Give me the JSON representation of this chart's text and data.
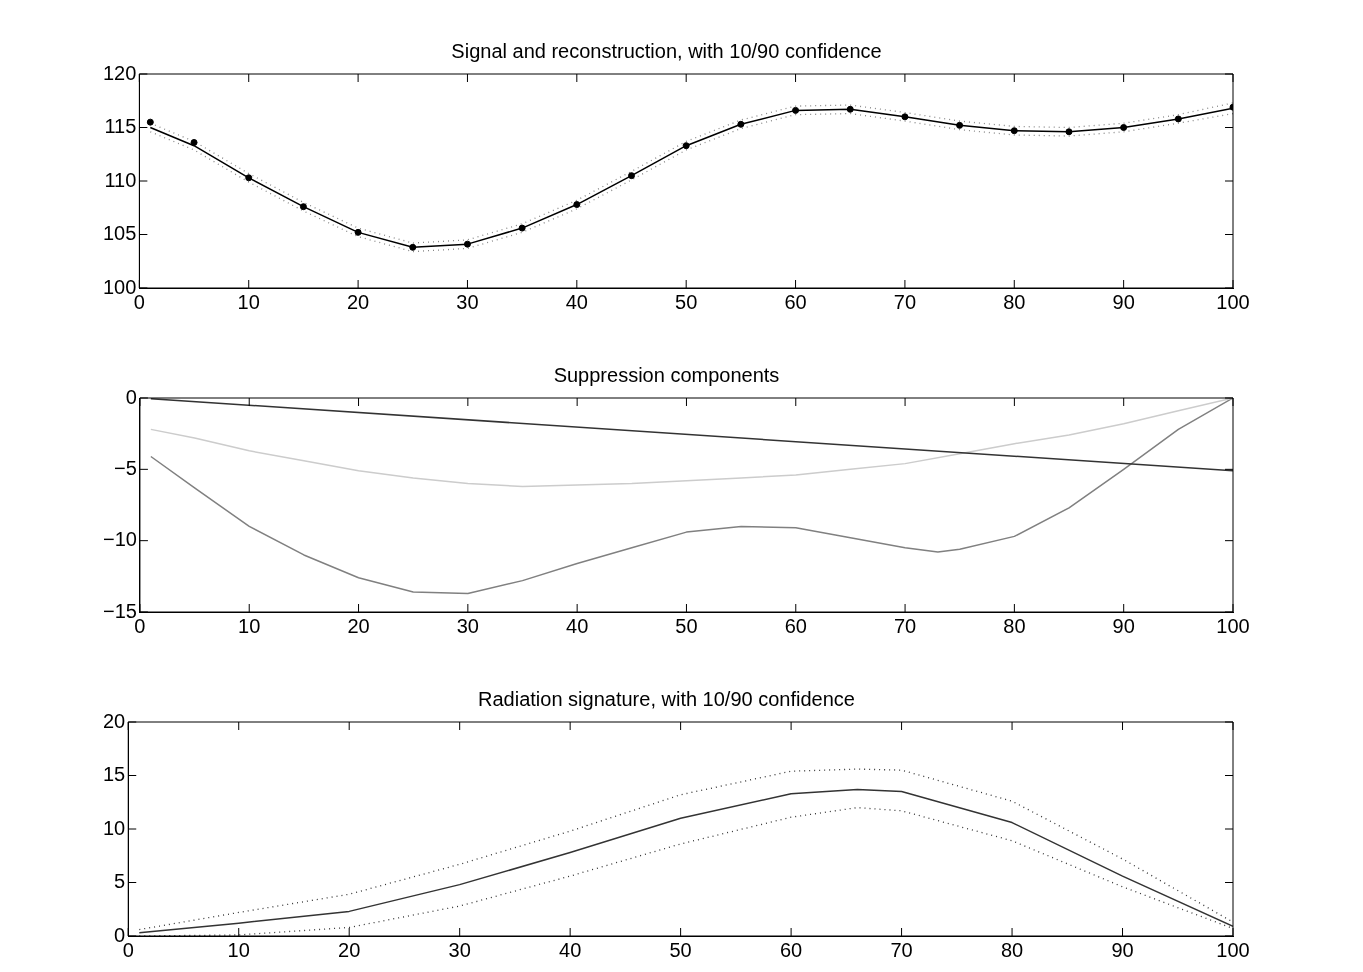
{
  "chart_data": [
    {
      "type": "line",
      "title": "Signal and reconstruction, with 10/90 confidence",
      "x": [
        1,
        5,
        10,
        15,
        20,
        25,
        30,
        35,
        40,
        45,
        50,
        55,
        60,
        65,
        70,
        75,
        80,
        85,
        90,
        95,
        100
      ],
      "xlim": [
        0,
        100
      ],
      "xticks": [
        0,
        10,
        20,
        30,
        40,
        50,
        60,
        70,
        80,
        90,
        100
      ],
      "ylim": [
        100,
        120
      ],
      "yticks": [
        100,
        105,
        110,
        115,
        120
      ],
      "grid": false,
      "series": [
        {
          "type": "scatter",
          "marker": "circle",
          "color": "#000000",
          "values": [
            115.5,
            113.6,
            110.3,
            107.6,
            105.2,
            103.8,
            104.1,
            105.6,
            107.8,
            110.5,
            113.3,
            115.3,
            116.6,
            116.7,
            116.0,
            115.2,
            114.7,
            114.6,
            115.0,
            115.8,
            116.9
          ]
        },
        {
          "type": "line",
          "color": "#000000",
          "values": [
            115.0,
            113.3,
            110.3,
            107.6,
            105.2,
            103.8,
            104.1,
            105.6,
            107.8,
            110.5,
            113.3,
            115.3,
            116.6,
            116.7,
            116.0,
            115.2,
            114.7,
            114.6,
            115.0,
            115.8,
            116.8
          ]
        },
        {
          "type": "line",
          "line_style": "dotted",
          "color": "#888888",
          "values": [
            114.6,
            112.9,
            109.9,
            107.2,
            104.8,
            103.4,
            103.7,
            105.2,
            107.4,
            110.1,
            112.9,
            114.9,
            116.2,
            116.3,
            115.6,
            114.8,
            114.3,
            114.2,
            114.6,
            115.4,
            116.3
          ]
        },
        {
          "type": "line",
          "line_style": "dotted",
          "color": "#888888",
          "values": [
            115.4,
            113.7,
            110.7,
            108.0,
            105.6,
            104.2,
            104.5,
            106.0,
            108.2,
            110.9,
            113.7,
            115.7,
            117.0,
            117.1,
            116.4,
            115.6,
            115.1,
            115.0,
            115.4,
            116.2,
            117.3
          ]
        }
      ]
    },
    {
      "type": "line",
      "title": "Suppression components",
      "xlim": [
        0,
        100
      ],
      "xticks": [
        0,
        10,
        20,
        30,
        40,
        50,
        60,
        70,
        80,
        90,
        100
      ],
      "ylim": [
        -15,
        0
      ],
      "yticks": [
        {
          "value": -15,
          "label": "−15"
        },
        {
          "value": -10,
          "label": "−10"
        },
        {
          "value": -5,
          "label": "−5"
        },
        0
      ],
      "grid": false,
      "series": [
        {
          "color": "#333333",
          "x": [
            1,
            100
          ],
          "values": [
            -0.05,
            -5.1
          ]
        },
        {
          "color": "#cccccc",
          "x": [
            1,
            5,
            10,
            15,
            20,
            25,
            30,
            35,
            40,
            45,
            50,
            55,
            60,
            65,
            70,
            75,
            80,
            85,
            90,
            95,
            100
          ],
          "values": [
            -2.2,
            -2.8,
            -3.7,
            -4.4,
            -5.1,
            -5.6,
            -6.0,
            -6.2,
            -6.1,
            -6.0,
            -5.8,
            -5.6,
            -5.4,
            -5.0,
            -4.6,
            -3.9,
            -3.2,
            -2.6,
            -1.8,
            -0.9,
            0
          ]
        },
        {
          "color": "#808080",
          "x": [
            1,
            5,
            10,
            15,
            20,
            25,
            30,
            35,
            40,
            45,
            50,
            55,
            60,
            65,
            70,
            73,
            75,
            80,
            85,
            90,
            95,
            100
          ],
          "values": [
            -4.1,
            -6.3,
            -9.0,
            -11.0,
            -12.6,
            -13.6,
            -13.7,
            -12.8,
            -11.6,
            -10.5,
            -9.4,
            -9.0,
            -9.1,
            -9.8,
            -10.5,
            -10.8,
            -10.6,
            -9.7,
            -7.7,
            -5.0,
            -2.2,
            0
          ]
        }
      ]
    },
    {
      "type": "line",
      "title": "Radiation signature, with 10/90 confidence",
      "x": [
        1,
        10,
        20,
        30,
        40,
        50,
        60,
        66,
        70,
        80,
        90,
        100
      ],
      "xlim": [
        0,
        100
      ],
      "xticks": [
        0,
        10,
        20,
        30,
        40,
        50,
        60,
        70,
        80,
        90,
        100
      ],
      "ylim": [
        0,
        20
      ],
      "yticks": [
        0,
        5,
        10,
        15,
        20
      ],
      "grid": false,
      "series": [
        {
          "color": "#333333",
          "values": [
            0.3,
            1.2,
            2.3,
            4.8,
            7.8,
            11.0,
            13.3,
            13.7,
            13.5,
            10.6,
            5.6,
            0.9
          ]
        },
        {
          "line_style": "dotted",
          "color": "#333333",
          "values": [
            0,
            0.1,
            0.8,
            2.8,
            5.6,
            8.6,
            11.1,
            12.0,
            11.7,
            8.9,
            4.6,
            0.7
          ]
        },
        {
          "line_style": "dotted",
          "color": "#333333",
          "values": [
            0.6,
            2.2,
            3.9,
            6.7,
            9.8,
            13.2,
            15.4,
            15.6,
            15.5,
            12.6,
            7.2,
            1.3
          ]
        }
      ]
    }
  ]
}
